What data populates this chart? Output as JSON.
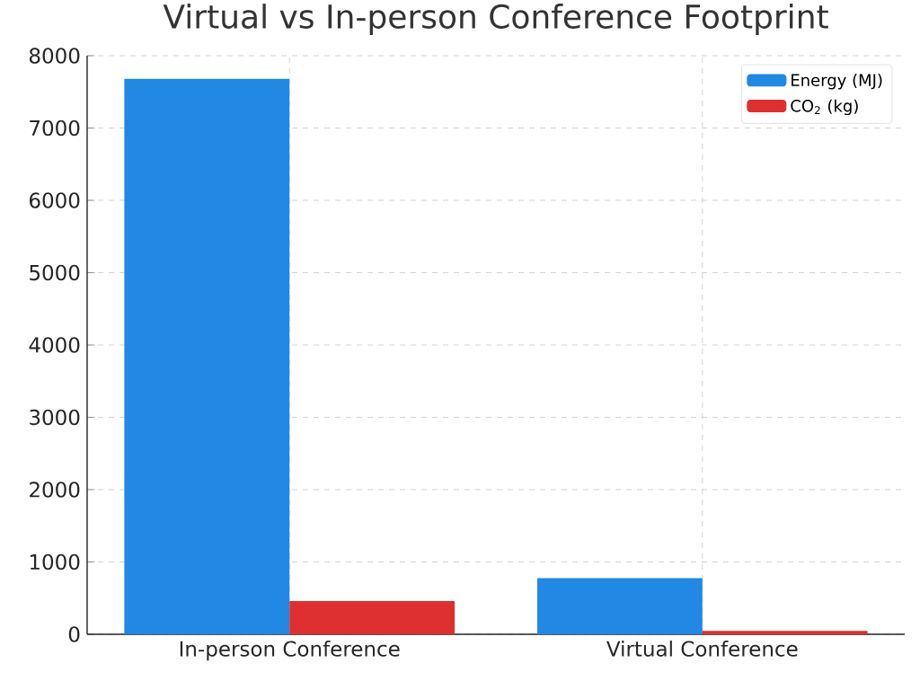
{
  "chart_data": {
    "type": "bar",
    "title": "Virtual vs In-person Conference Footprint",
    "categories": [
      "In-person Conference",
      "Virtual Conference"
    ],
    "series": [
      {
        "name": "Energy (MJ)",
        "color": "#2188e3",
        "values": [
          7680,
          775
        ]
      },
      {
        "name": "CO$_{2}$ (kg)",
        "color": "#de3030",
        "values": [
          460,
          45
        ]
      }
    ],
    "ylim": [
      0,
      8000
    ],
    "yticks": [
      0,
      1000,
      2000,
      3000,
      4000,
      5000,
      6000,
      7000,
      8000
    ],
    "grid": true,
    "legend": "top right"
  }
}
